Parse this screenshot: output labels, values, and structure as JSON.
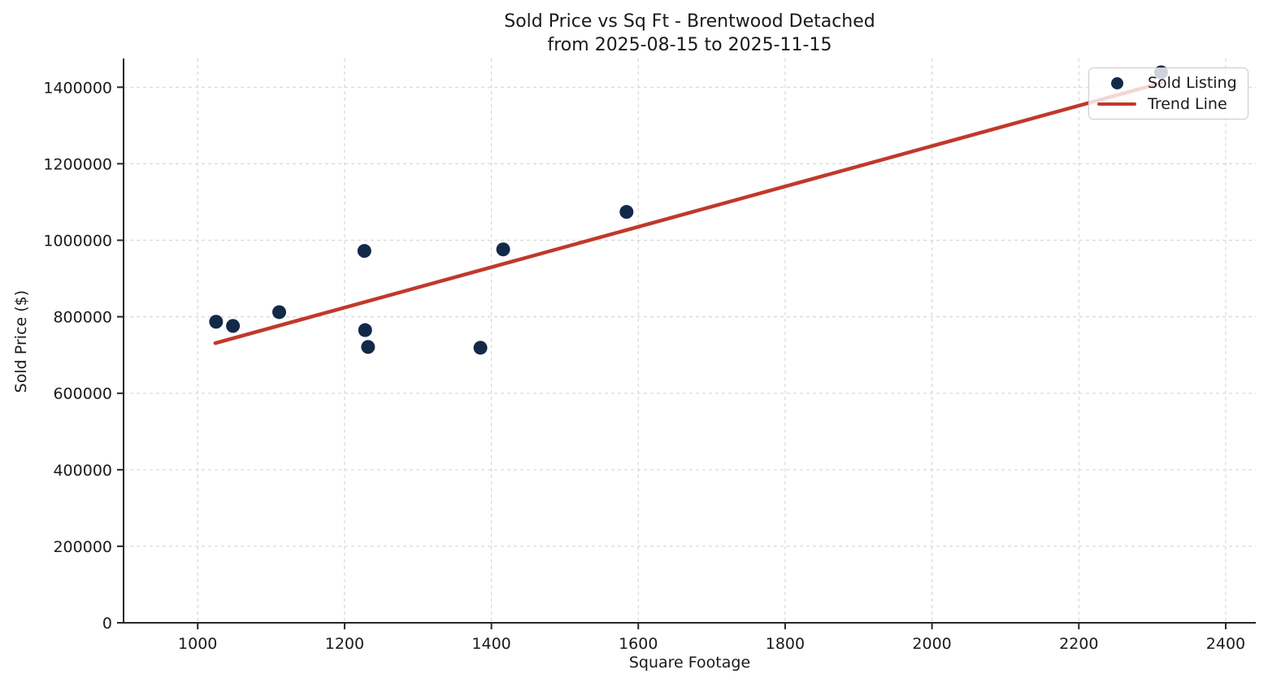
{
  "title": {
    "line1": "Sold Price vs Sq Ft - Brentwood Detached",
    "line2": "from 2025-08-15 to 2025-11-15"
  },
  "chart_data": {
    "type": "scatter",
    "title": "Sold Price vs Sq Ft - Brentwood Detached from 2025-08-15 to 2025-11-15",
    "xlabel": "Square Footage",
    "ylabel": "Sold Price ($)",
    "xlim": [
      899,
      2441
    ],
    "ylim": [
      0,
      1475000
    ],
    "x_ticks": [
      1000,
      1200,
      1400,
      1600,
      1800,
      2000,
      2200,
      2400
    ],
    "y_ticks": [
      0,
      200000,
      400000,
      600000,
      800000,
      1000000,
      1200000,
      1400000
    ],
    "grid": true,
    "grid_style": "dashed",
    "legend_position": "upper right",
    "series": [
      {
        "name": "Sold Listing",
        "kind": "scatter",
        "color": "#132948",
        "marker_radius": 8.5,
        "points": [
          [
            1025,
            787000
          ],
          [
            1048,
            776000
          ],
          [
            1111,
            812000
          ],
          [
            1227,
            972000
          ],
          [
            1228,
            765000
          ],
          [
            1232,
            721000
          ],
          [
            1385,
            719000
          ],
          [
            1416,
            976000
          ],
          [
            1584,
            1074000
          ],
          [
            2312,
            1439000
          ]
        ]
      },
      {
        "name": "Trend Line",
        "kind": "line",
        "color": "#c0392b",
        "line_width": 4.5,
        "points": [
          [
            1024,
            731000
          ],
          [
            2312,
            1411000
          ]
        ]
      }
    ]
  },
  "legend": {
    "items": [
      {
        "label": "Sold Listing",
        "marker": "dot",
        "color": "#132948"
      },
      {
        "label": "Trend Line",
        "marker": "line",
        "color": "#c0392b"
      }
    ]
  },
  "style": {
    "spine_color": "#262626",
    "grid_color": "#d8d8d8",
    "text_color": "#1a1a1a"
  }
}
